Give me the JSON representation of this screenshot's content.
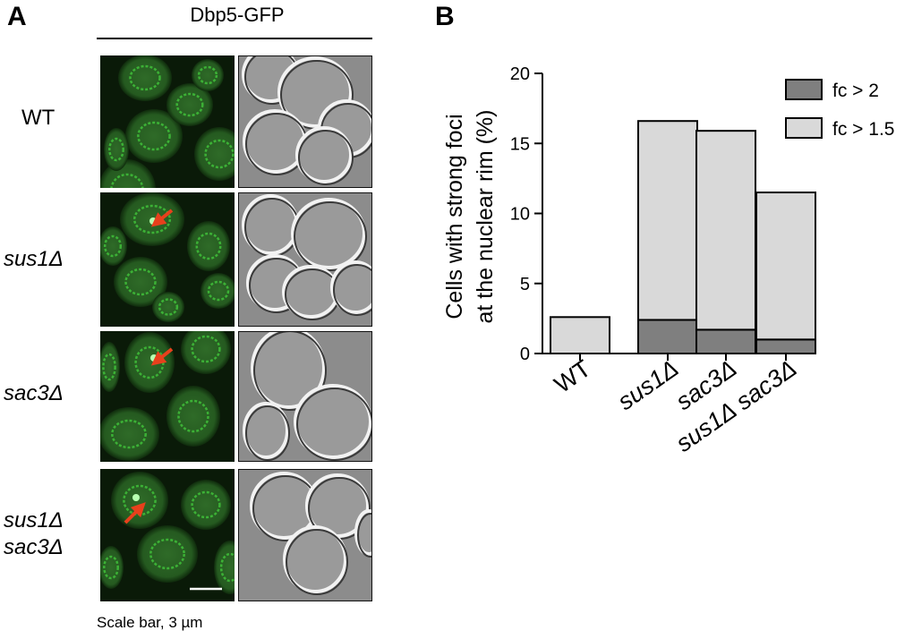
{
  "panel_a": {
    "letter": "A",
    "column_title": "Dbp5-GFP",
    "rows": [
      {
        "label_line1": "WT",
        "label_line2": ""
      },
      {
        "label_line1": "sus1Δ",
        "label_line2": ""
      },
      {
        "label_line1": "sac3Δ",
        "label_line2": ""
      },
      {
        "label_line1": "sus1Δ",
        "label_line2": "sac3Δ"
      }
    ],
    "scale_bar_caption": "Scale bar, 3 µm",
    "colors": {
      "gfp": "#3fbf3a",
      "arrow": "#e8401c"
    }
  },
  "panel_b": {
    "letter": "B"
  },
  "chart_data": {
    "type": "bar",
    "stacked": true,
    "categories": [
      "WT",
      "sus1Δ",
      "sac3Δ",
      "sus1Δ sac3Δ"
    ],
    "series": [
      {
        "name": "fc > 2",
        "values": [
          0,
          2.4,
          1.7,
          1.0
        ],
        "color": "#7f7f7f"
      },
      {
        "name": "fc > 1.5",
        "values": [
          2.6,
          14.2,
          14.2,
          10.5
        ],
        "color": "#d9d9d9"
      }
    ],
    "totals": [
      2.6,
      16.6,
      15.9,
      11.5
    ],
    "ylabel_line1": "Cells with strong foci",
    "ylabel_line2": "at the nuclear rim (%)",
    "ylim": [
      0,
      20
    ],
    "yticks": [
      "0",
      "5",
      "10",
      "15",
      "20"
    ],
    "legend_position": "top-right",
    "grid": false
  }
}
